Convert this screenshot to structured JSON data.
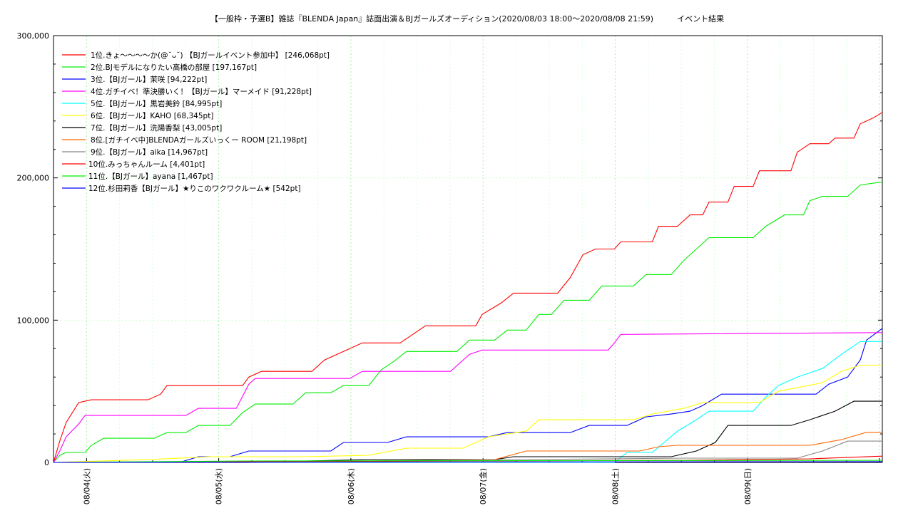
{
  "chart_data": {
    "type": "line",
    "title": "【一般枠・予選B】雑誌『BLENDA Japan』誌面出演＆BJガールズオーディション(2020/08/03 18:00〜2020/08/08 21:59)　　　イベント結果",
    "ylim": [
      0,
      300000
    ],
    "y_ticks": [
      "0",
      "100,000",
      "200,000",
      "300,000"
    ],
    "x_ticks": [
      "08/04(火)",
      "08/05(水)",
      "08/06(木)",
      "08/07(金)",
      "08/08(土)",
      "08/09(日)"
    ],
    "x_start": "2020/08/03 18:00",
    "x_end": "2020/08/09 00:30",
    "grid": true,
    "legend_position": "top-left",
    "series": [
      {
        "name": "1位.きょ〜〜〜〜か(@˘ᴗ˘) 【BJガールイベント参加中】 [246,068pt]",
        "color": "#ff0000",
        "points": [
          [
            0,
            0
          ],
          [
            2,
            15000
          ],
          [
            4,
            28000
          ],
          [
            6,
            35000
          ],
          [
            8,
            42000
          ],
          [
            12,
            44000
          ],
          [
            30,
            44000
          ],
          [
            34,
            48000
          ],
          [
            36,
            54000
          ],
          [
            60,
            54000
          ],
          [
            62,
            60000
          ],
          [
            66,
            64000
          ],
          [
            82,
            64000
          ],
          [
            86,
            72000
          ],
          [
            92,
            78000
          ],
          [
            98,
            84000
          ],
          [
            110,
            84000
          ],
          [
            114,
            90000
          ],
          [
            118,
            96000
          ],
          [
            134,
            96000
          ],
          [
            136,
            104000
          ],
          [
            142,
            112000
          ],
          [
            146,
            119000
          ],
          [
            160,
            119000
          ],
          [
            164,
            130000
          ],
          [
            166,
            138000
          ],
          [
            168,
            146000
          ],
          [
            172,
            150000
          ],
          [
            178,
            150000
          ],
          [
            180,
            155000
          ],
          [
            190,
            155000
          ],
          [
            192,
            166000
          ],
          [
            198,
            166000
          ],
          [
            202,
            174000
          ],
          [
            206,
            174000
          ],
          [
            208,
            183000
          ],
          [
            214,
            183000
          ],
          [
            216,
            194000
          ],
          [
            222,
            194000
          ],
          [
            224,
            205000
          ],
          [
            234,
            205000
          ],
          [
            236,
            218000
          ],
          [
            240,
            224000
          ],
          [
            246,
            224000
          ],
          [
            248,
            228000
          ],
          [
            254,
            228000
          ],
          [
            256,
            238000
          ],
          [
            260,
            242000
          ],
          [
            263,
            246068
          ]
        ]
      },
      {
        "name": "2位.BJモデルになりたい高橋の部屋 [197,167pt]",
        "color": "#00ee00",
        "points": [
          [
            0,
            0
          ],
          [
            2,
            5000
          ],
          [
            4,
            7000
          ],
          [
            10,
            7000
          ],
          [
            12,
            12000
          ],
          [
            16,
            17000
          ],
          [
            32,
            17000
          ],
          [
            36,
            21000
          ],
          [
            42,
            21000
          ],
          [
            46,
            26000
          ],
          [
            56,
            26000
          ],
          [
            60,
            35000
          ],
          [
            64,
            41000
          ],
          [
            76,
            41000
          ],
          [
            80,
            49000
          ],
          [
            88,
            49000
          ],
          [
            92,
            54000
          ],
          [
            100,
            54000
          ],
          [
            104,
            65000
          ],
          [
            108,
            71000
          ],
          [
            112,
            78000
          ],
          [
            128,
            78000
          ],
          [
            132,
            86000
          ],
          [
            140,
            86000
          ],
          [
            144,
            93000
          ],
          [
            150,
            93000
          ],
          [
            154,
            104000
          ],
          [
            158,
            104000
          ],
          [
            162,
            114000
          ],
          [
            170,
            114000
          ],
          [
            174,
            124000
          ],
          [
            184,
            124000
          ],
          [
            188,
            132000
          ],
          [
            196,
            132000
          ],
          [
            200,
            142000
          ],
          [
            204,
            150000
          ],
          [
            208,
            158000
          ],
          [
            222,
            158000
          ],
          [
            226,
            166000
          ],
          [
            232,
            174000
          ],
          [
            238,
            174000
          ],
          [
            240,
            184000
          ],
          [
            244,
            187000
          ],
          [
            252,
            187000
          ],
          [
            256,
            195000
          ],
          [
            263,
            197167
          ]
        ]
      },
      {
        "name": "3位.【BJガール】茉咲 [94,222pt]",
        "color": "#0000ff",
        "points": [
          [
            0,
            0
          ],
          [
            40,
            0
          ],
          [
            46,
            4000
          ],
          [
            56,
            4000
          ],
          [
            62,
            8000
          ],
          [
            88,
            8000
          ],
          [
            92,
            14000
          ],
          [
            106,
            14000
          ],
          [
            112,
            18000
          ],
          [
            138,
            18000
          ],
          [
            144,
            21000
          ],
          [
            164,
            21000
          ],
          [
            170,
            26000
          ],
          [
            182,
            26000
          ],
          [
            188,
            32000
          ],
          [
            196,
            34000
          ],
          [
            202,
            36000
          ],
          [
            206,
            40000
          ],
          [
            212,
            48000
          ],
          [
            242,
            48000
          ],
          [
            246,
            55000
          ],
          [
            252,
            60000
          ],
          [
            256,
            72000
          ],
          [
            258,
            86000
          ],
          [
            263,
            94222
          ]
        ]
      },
      {
        "name": "4位.ガチイベ！準決勝いく！【BJガール】マーメイド [91,228pt]",
        "color": "#ff00ff",
        "points": [
          [
            0,
            0
          ],
          [
            2,
            8000
          ],
          [
            4,
            18000
          ],
          [
            8,
            27000
          ],
          [
            10,
            33000
          ],
          [
            42,
            33000
          ],
          [
            46,
            38000
          ],
          [
            58,
            38000
          ],
          [
            62,
            55000
          ],
          [
            64,
            59000
          ],
          [
            94,
            59000
          ],
          [
            98,
            64000
          ],
          [
            126,
            64000
          ],
          [
            128,
            68000
          ],
          [
            132,
            76000
          ],
          [
            136,
            79000
          ],
          [
            176,
            79000
          ],
          [
            178,
            84000
          ],
          [
            180,
            90000
          ],
          [
            263,
            91228
          ]
        ]
      },
      {
        "name": "5位.【BJガール】黒岩美鈴 [84,995pt]",
        "color": "#00ffff",
        "points": [
          [
            0,
            0
          ],
          [
            178,
            0
          ],
          [
            182,
            7000
          ],
          [
            190,
            7000
          ],
          [
            198,
            22000
          ],
          [
            204,
            30000
          ],
          [
            208,
            36000
          ],
          [
            222,
            36000
          ],
          [
            226,
            46000
          ],
          [
            230,
            54000
          ],
          [
            236,
            60000
          ],
          [
            244,
            66000
          ],
          [
            250,
            76000
          ],
          [
            256,
            84995
          ],
          [
            263,
            84995
          ]
        ]
      },
      {
        "name": "6位.【BJガール】KAHO [68,345pt]",
        "color": "#ffff00",
        "points": [
          [
            0,
            0
          ],
          [
            30,
            2000
          ],
          [
            50,
            4000
          ],
          [
            80,
            4000
          ],
          [
            100,
            5000
          ],
          [
            112,
            10000
          ],
          [
            130,
            10000
          ],
          [
            138,
            18000
          ],
          [
            150,
            22000
          ],
          [
            154,
            30000
          ],
          [
            184,
            30000
          ],
          [
            190,
            34000
          ],
          [
            200,
            38000
          ],
          [
            206,
            42000
          ],
          [
            224,
            42000
          ],
          [
            230,
            50000
          ],
          [
            244,
            56000
          ],
          [
            250,
            64000
          ],
          [
            256,
            68345
          ],
          [
            263,
            68345
          ]
        ]
      },
      {
        "name": "7位.【BJガール】洗陽香梨 [43,005pt]",
        "color": "#000000",
        "points": [
          [
            0,
            0
          ],
          [
            60,
            0
          ],
          [
            80,
            1000
          ],
          [
            100,
            2000
          ],
          [
            140,
            2000
          ],
          [
            146,
            4000
          ],
          [
            196,
            4000
          ],
          [
            204,
            8000
          ],
          [
            210,
            14000
          ],
          [
            214,
            26000
          ],
          [
            234,
            26000
          ],
          [
            240,
            30000
          ],
          [
            248,
            36000
          ],
          [
            254,
            43005
          ],
          [
            263,
            43005
          ]
        ]
      },
      {
        "name": "8位.[ガチイベ中]BLENDAガールズいっくー ROOM [21,198pt]",
        "color": "#ff6600",
        "points": [
          [
            0,
            0
          ],
          [
            100,
            1000
          ],
          [
            140,
            2000
          ],
          [
            150,
            8000
          ],
          [
            186,
            8000
          ],
          [
            192,
            11000
          ],
          [
            198,
            12000
          ],
          [
            240,
            12000
          ],
          [
            250,
            16000
          ],
          [
            258,
            21198
          ],
          [
            263,
            21198
          ]
        ]
      },
      {
        "name": "9位.【BJガール】aika [14,967pt]",
        "color": "#888888",
        "points": [
          [
            0,
            0
          ],
          [
            100,
            1000
          ],
          [
            150,
            2000
          ],
          [
            200,
            3000
          ],
          [
            236,
            3000
          ],
          [
            244,
            8000
          ],
          [
            252,
            14967
          ],
          [
            263,
            14967
          ]
        ]
      },
      {
        "name": "10位.みっちゃんルーム [4,401pt]",
        "color": "#ff0000",
        "points": [
          [
            0,
            0
          ],
          [
            200,
            1500
          ],
          [
            240,
            2500
          ],
          [
            263,
            4401
          ]
        ]
      },
      {
        "name": "11位.【BJガール】ayana [1,467pt]",
        "color": "#00ee00",
        "points": [
          [
            0,
            0
          ],
          [
            60,
            1000
          ],
          [
            263,
            1467
          ]
        ]
      },
      {
        "name": "12位.杉田莉香【BJガール】★りこのワクワクルーム★ [542pt]",
        "color": "#0000ff",
        "points": [
          [
            0,
            0
          ],
          [
            263,
            542
          ]
        ]
      }
    ]
  }
}
